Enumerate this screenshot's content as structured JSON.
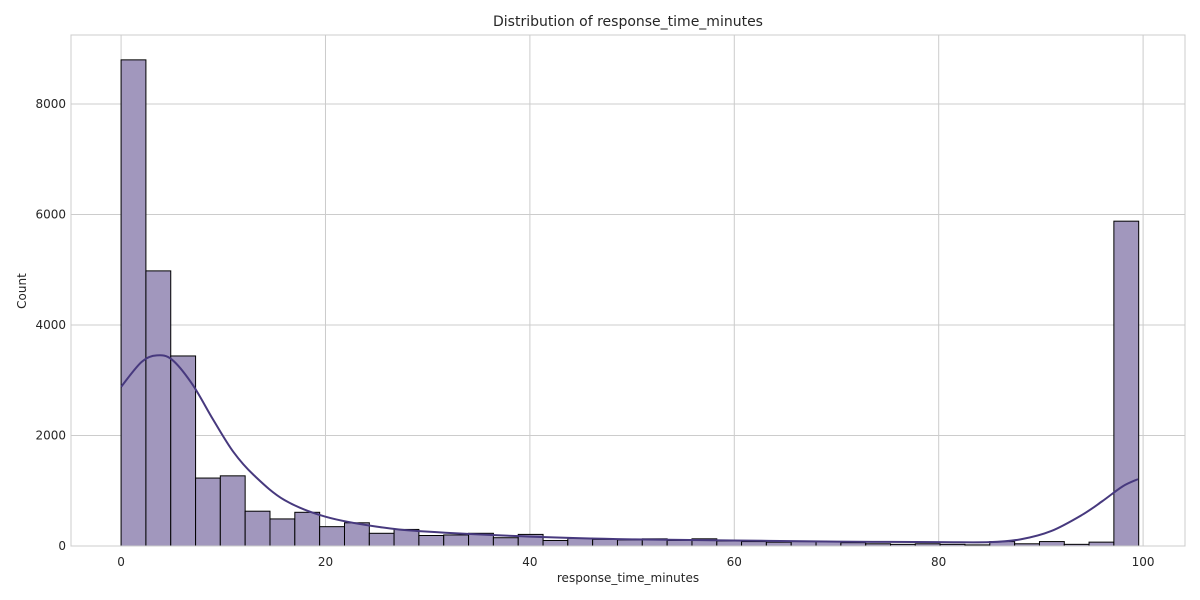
{
  "chart_data": {
    "type": "histogram",
    "title": "Distribution of response_time_minutes",
    "xlabel": "response_time_minutes",
    "ylabel": "Count",
    "xlim": [
      -4.9,
      104.1
    ],
    "ylim": [
      0,
      9250
    ],
    "xticks": [
      0,
      20,
      40,
      60,
      80,
      100
    ],
    "yticks": [
      0,
      2000,
      4000,
      6000,
      8000
    ],
    "grid": true,
    "bin_edges": [
      0,
      2.43,
      4.86,
      7.29,
      9.71,
      12.14,
      14.57,
      17.0,
      19.43,
      21.86,
      24.29,
      26.71,
      29.14,
      31.57,
      34.0,
      36.43,
      38.86,
      41.29,
      43.71,
      46.14,
      48.57,
      51.0,
      53.43,
      55.86,
      58.29,
      60.71,
      63.14,
      65.57,
      68.0,
      70.43,
      72.86,
      75.29,
      77.71,
      80.14,
      82.57,
      85.0,
      87.43,
      89.86,
      92.29,
      94.71,
      97.14,
      99.57
    ],
    "counts": [
      8800,
      4980,
      3440,
      1230,
      1270,
      630,
      490,
      610,
      350,
      420,
      230,
      300,
      190,
      200,
      230,
      150,
      210,
      100,
      140,
      120,
      110,
      130,
      100,
      130,
      90,
      80,
      70,
      80,
      80,
      60,
      40,
      30,
      40,
      30,
      20,
      80,
      40,
      80,
      30,
      70,
      5880
    ],
    "kde": {
      "x": [
        0,
        2,
        3.5,
        5,
        7,
        9,
        11,
        13,
        16,
        20,
        25,
        30,
        40,
        50,
        60,
        70,
        80,
        85,
        88,
        91,
        94,
        96,
        98,
        99.5
      ],
      "y": [
        2880,
        3330,
        3450,
        3370,
        2920,
        2290,
        1700,
        1280,
        830,
        530,
        350,
        260,
        170,
        120,
        100,
        80,
        70,
        70,
        120,
        270,
        560,
        810,
        1080,
        1210
      ]
    },
    "colors": {
      "bar_fill": "#a197bd",
      "bar_edge": "#000000",
      "kde_line": "#47397e"
    }
  }
}
